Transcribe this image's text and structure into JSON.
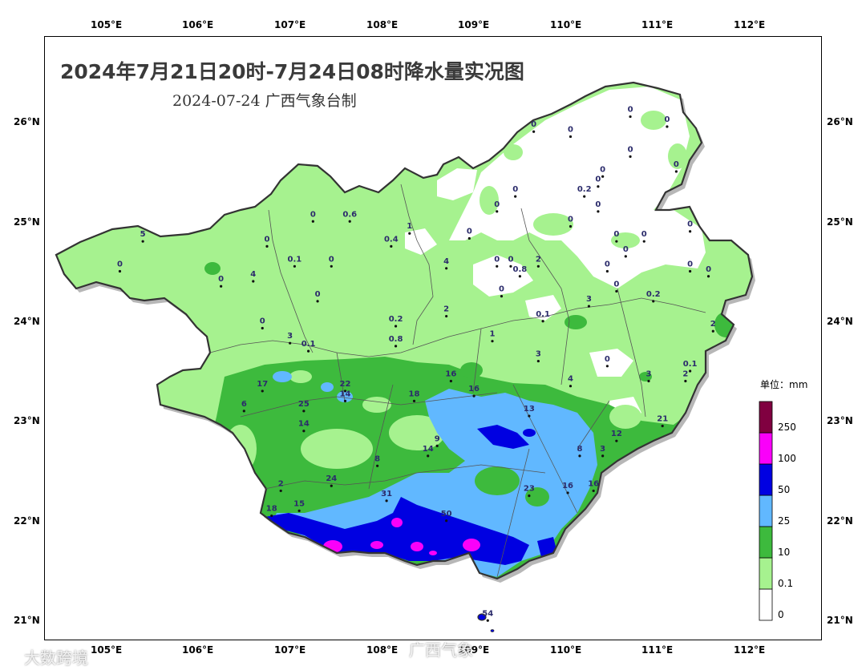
{
  "title": "2024年7月21日20时-7月24日08时降水量实况图",
  "subtitle": "2024-07-24  广西气象台制",
  "lon_ticks": [
    "105°E",
    "106°E",
    "107°E",
    "108°E",
    "109°E",
    "110°E",
    "111°E",
    "112°E"
  ],
  "lat_ticks": [
    "26°N",
    "25°N",
    "24°N",
    "23°N",
    "22°N",
    "21°N"
  ],
  "legend": {
    "title": "单位：mm",
    "bins": [
      {
        "label": "0",
        "color": "#ffffff"
      },
      {
        "label": "0.1",
        "color": "#a6f28f"
      },
      {
        "label": "10",
        "color": "#3dba3d"
      },
      {
        "label": "25",
        "color": "#61b8ff"
      },
      {
        "label": "50",
        "color": "#0000e1"
      },
      {
        "label": "100",
        "color": "#fa00fa"
      },
      {
        "label": "250",
        "color": "#800040"
      }
    ]
  },
  "station_values": [
    {
      "v": "5",
      "lon": 105.35,
      "lat": 24.85
    },
    {
      "v": "0",
      "lon": 105.1,
      "lat": 24.55
    },
    {
      "v": "0",
      "lon": 106.2,
      "lat": 24.4
    },
    {
      "v": "4",
      "lon": 106.55,
      "lat": 24.45
    },
    {
      "v": "0",
      "lon": 106.7,
      "lat": 24.8
    },
    {
      "v": "0",
      "lon": 107.2,
      "lat": 25.05
    },
    {
      "v": "0.6",
      "lon": 107.6,
      "lat": 25.05
    },
    {
      "v": "0.1",
      "lon": 107.0,
      "lat": 24.6
    },
    {
      "v": "0",
      "lon": 107.4,
      "lat": 24.6
    },
    {
      "v": "0",
      "lon": 107.25,
      "lat": 24.25
    },
    {
      "v": "0",
      "lon": 106.65,
      "lat": 23.98
    },
    {
      "v": "3",
      "lon": 106.95,
      "lat": 23.83
    },
    {
      "v": "0.1",
      "lon": 107.15,
      "lat": 23.75
    },
    {
      "v": "1",
      "lon": 108.25,
      "lat": 24.93
    },
    {
      "v": "0.4",
      "lon": 108.05,
      "lat": 24.8
    },
    {
      "v": "4",
      "lon": 108.65,
      "lat": 24.58
    },
    {
      "v": "0",
      "lon": 108.9,
      "lat": 24.88
    },
    {
      "v": "0.2",
      "lon": 108.1,
      "lat": 24.0
    },
    {
      "v": "0.8",
      "lon": 108.1,
      "lat": 23.8
    },
    {
      "v": "2",
      "lon": 108.65,
      "lat": 24.1
    },
    {
      "v": "1",
      "lon": 109.15,
      "lat": 23.85
    },
    {
      "v": "3",
      "lon": 109.65,
      "lat": 23.65
    },
    {
      "v": "0.1",
      "lon": 109.7,
      "lat": 24.05
    },
    {
      "v": "0",
      "lon": 109.25,
      "lat": 24.3
    },
    {
      "v": "0",
      "lon": 109.35,
      "lat": 24.6
    },
    {
      "v": "0.8",
      "lon": 109.45,
      "lat": 24.5
    },
    {
      "v": "0",
      "lon": 109.2,
      "lat": 24.6
    },
    {
      "v": "2",
      "lon": 109.65,
      "lat": 24.6
    },
    {
      "v": "0",
      "lon": 109.2,
      "lat": 25.15
    },
    {
      "v": "0",
      "lon": 109.4,
      "lat": 25.3
    },
    {
      "v": "0",
      "lon": 109.6,
      "lat": 25.95
    },
    {
      "v": "0",
      "lon": 110.0,
      "lat": 25.9
    },
    {
      "v": "0.2",
      "lon": 110.15,
      "lat": 25.3
    },
    {
      "v": "0",
      "lon": 110.3,
      "lat": 25.15
    },
    {
      "v": "0",
      "lon": 110.3,
      "lat": 25.4
    },
    {
      "v": "0",
      "lon": 110.35,
      "lat": 25.5
    },
    {
      "v": "0",
      "lon": 110.65,
      "lat": 26.1
    },
    {
      "v": "0",
      "lon": 111.05,
      "lat": 26.0
    },
    {
      "v": "0",
      "lon": 110.65,
      "lat": 25.7
    },
    {
      "v": "0",
      "lon": 111.15,
      "lat": 25.55
    },
    {
      "v": "0",
      "lon": 110.0,
      "lat": 25.0
    },
    {
      "v": "0",
      "lon": 110.5,
      "lat": 24.85
    },
    {
      "v": "0",
      "lon": 110.6,
      "lat": 24.7
    },
    {
      "v": "0",
      "lon": 110.8,
      "lat": 24.85
    },
    {
      "v": "0",
      "lon": 111.3,
      "lat": 24.95
    },
    {
      "v": "0",
      "lon": 111.3,
      "lat": 24.55
    },
    {
      "v": "0",
      "lon": 111.5,
      "lat": 24.5
    },
    {
      "v": "0",
      "lon": 110.4,
      "lat": 24.55
    },
    {
      "v": "0",
      "lon": 110.5,
      "lat": 24.35
    },
    {
      "v": "0.2",
      "lon": 110.9,
      "lat": 24.25
    },
    {
      "v": "3",
      "lon": 110.2,
      "lat": 24.2
    },
    {
      "v": "2",
      "lon": 111.55,
      "lat": 23.95
    },
    {
      "v": "0.1",
      "lon": 111.3,
      "lat": 23.55
    },
    {
      "v": "2",
      "lon": 111.25,
      "lat": 23.45
    },
    {
      "v": "3",
      "lon": 110.85,
      "lat": 23.45
    },
    {
      "v": "4",
      "lon": 110.0,
      "lat": 23.4
    },
    {
      "v": "0",
      "lon": 110.4,
      "lat": 23.6
    },
    {
      "v": "21",
      "lon": 111.0,
      "lat": 23.0
    },
    {
      "v": "12",
      "lon": 110.5,
      "lat": 22.85
    },
    {
      "v": "3",
      "lon": 110.35,
      "lat": 22.7
    },
    {
      "v": "8",
      "lon": 110.1,
      "lat": 22.7
    },
    {
      "v": "16",
      "lon": 110.25,
      "lat": 22.35
    },
    {
      "v": "16",
      "lon": 109.97,
      "lat": 22.33
    },
    {
      "v": "23",
      "lon": 109.55,
      "lat": 22.3
    },
    {
      "v": "13",
      "lon": 109.55,
      "lat": 23.1
    },
    {
      "v": "16",
      "lon": 108.95,
      "lat": 23.3
    },
    {
      "v": "16",
      "lon": 108.7,
      "lat": 23.45
    },
    {
      "v": "18",
      "lon": 108.3,
      "lat": 23.25
    },
    {
      "v": "14",
      "lon": 108.45,
      "lat": 22.7
    },
    {
      "v": "9",
      "lon": 108.55,
      "lat": 22.8
    },
    {
      "v": "8",
      "lon": 107.9,
      "lat": 22.6
    },
    {
      "v": "14",
      "lon": 107.55,
      "lat": 23.25
    },
    {
      "v": "22",
      "lon": 107.55,
      "lat": 23.35
    },
    {
      "v": "25",
      "lon": 107.1,
      "lat": 23.15
    },
    {
      "v": "17",
      "lon": 106.65,
      "lat": 23.35
    },
    {
      "v": "6",
      "lon": 106.45,
      "lat": 23.15
    },
    {
      "v": "14",
      "lon": 107.1,
      "lat": 22.95
    },
    {
      "v": "2",
      "lon": 106.85,
      "lat": 22.35
    },
    {
      "v": "24",
      "lon": 107.4,
      "lat": 22.4
    },
    {
      "v": "15",
      "lon": 107.05,
      "lat": 22.15
    },
    {
      "v": "18",
      "lon": 106.75,
      "lat": 22.1
    },
    {
      "v": "31",
      "lon": 108.0,
      "lat": 22.25
    },
    {
      "v": "50",
      "lon": 108.65,
      "lat": 22.05
    },
    {
      "v": "54",
      "lon": 109.1,
      "lat": 21.05
    }
  ],
  "watermarks": [
    "大数跨境",
    "广西气象"
  ]
}
